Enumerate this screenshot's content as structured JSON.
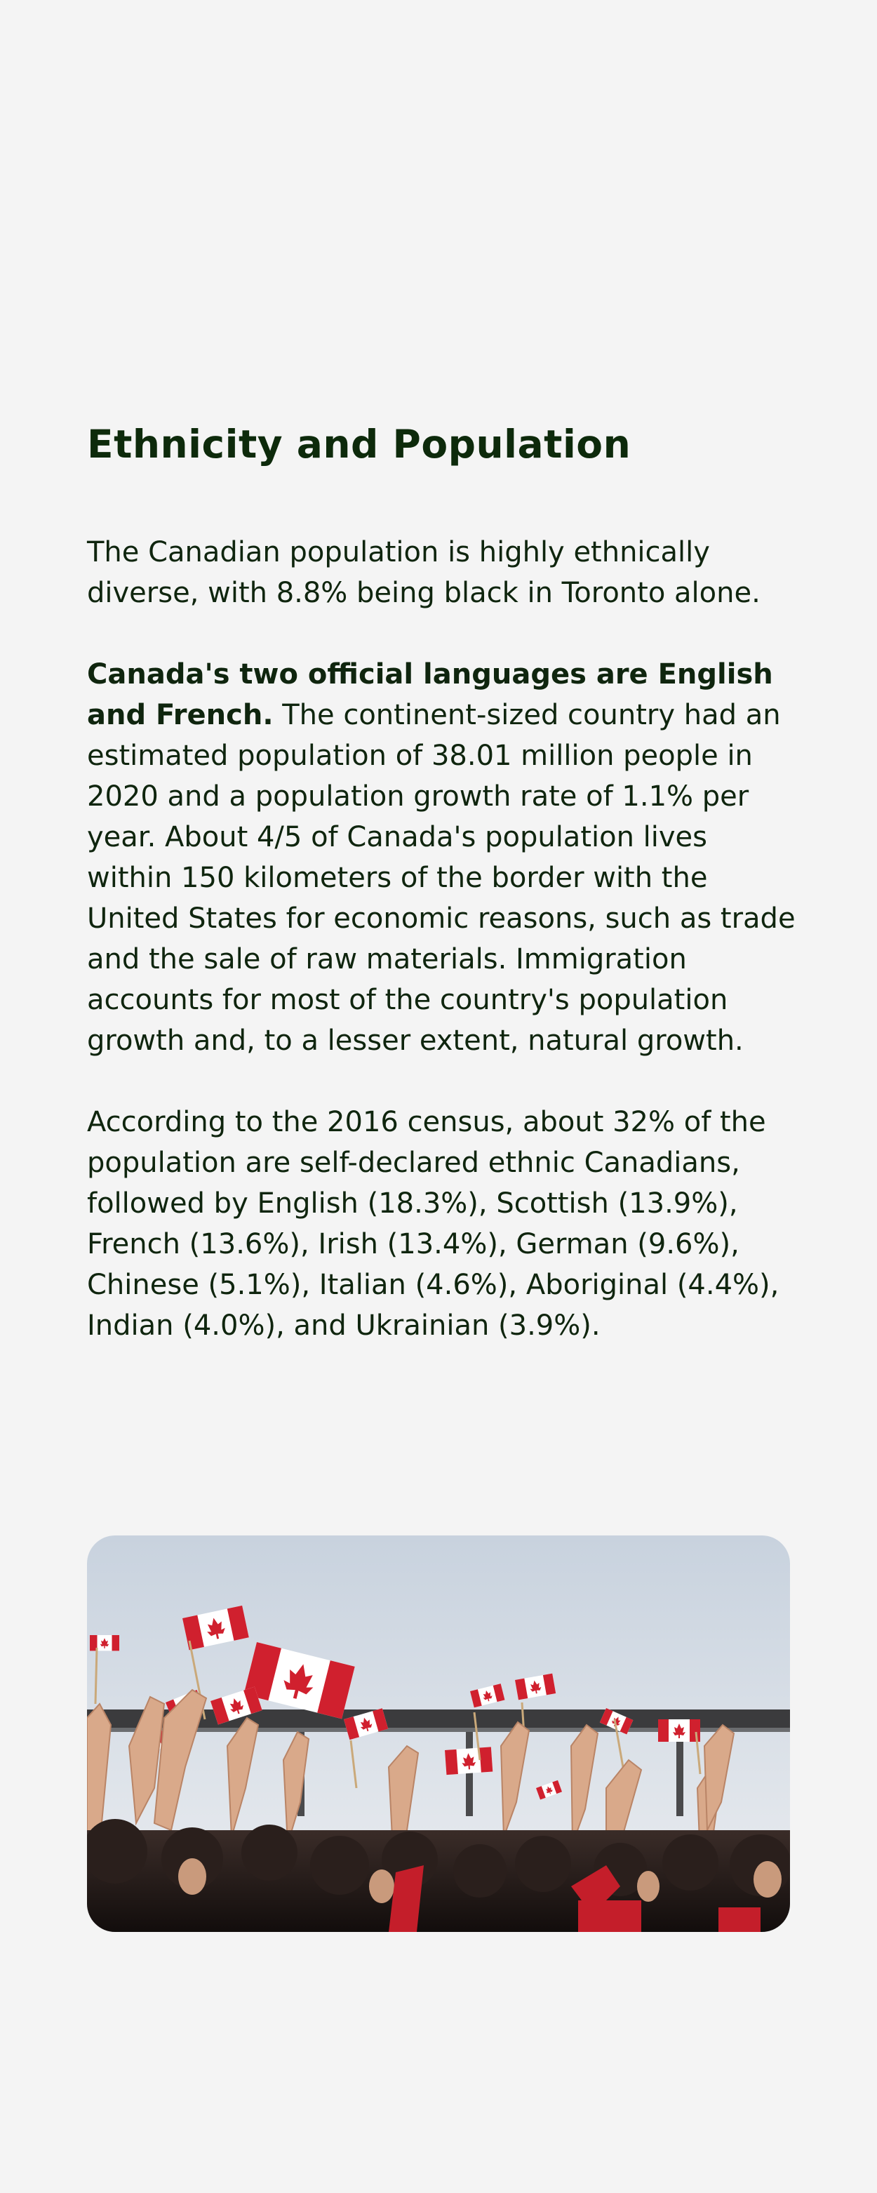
{
  "section": {
    "title": "Ethnicity and Population",
    "paragraph1": "The Canadian population is highly ethnically diverse, with 8.8% being black in Toronto alone.",
    "paragraph2_bold": "Canada's two official languages are English and French.",
    "paragraph2_rest": " The continent-sized country had an estimated population of 38.01 million people in 2020 and a population growth rate of 1.1% per year. About 4/5 of Canada's population lives within 150 kilometers of the border with the United States for economic reasons, such as trade and the sale of raw materials. Immigration accounts for most of the country's population growth and, to a lesser extent, natural growth.",
    "paragraph3": "According to the 2016 census, about 32% of the population are self-declared ethnic Canadians, followed by English (18.3%), Scottish (13.9%), French (13.6%), Irish (13.4%), German (9.6%), Chinese (5.1%), Italian (4.6%), Aboriginal (4.4%), Indian (4.0%), and Ukrainian (3.9%)."
  },
  "photo": {
    "subject": "crowd-waving-canadian-flags",
    "colors": {
      "sky_top": "#c9d3df",
      "sky_bottom": "#e8eaee",
      "flag_red": "#d0202e",
      "flag_white": "#ffffff",
      "crowd_dark": "#1a1412",
      "skin": "#d9a98a"
    }
  }
}
